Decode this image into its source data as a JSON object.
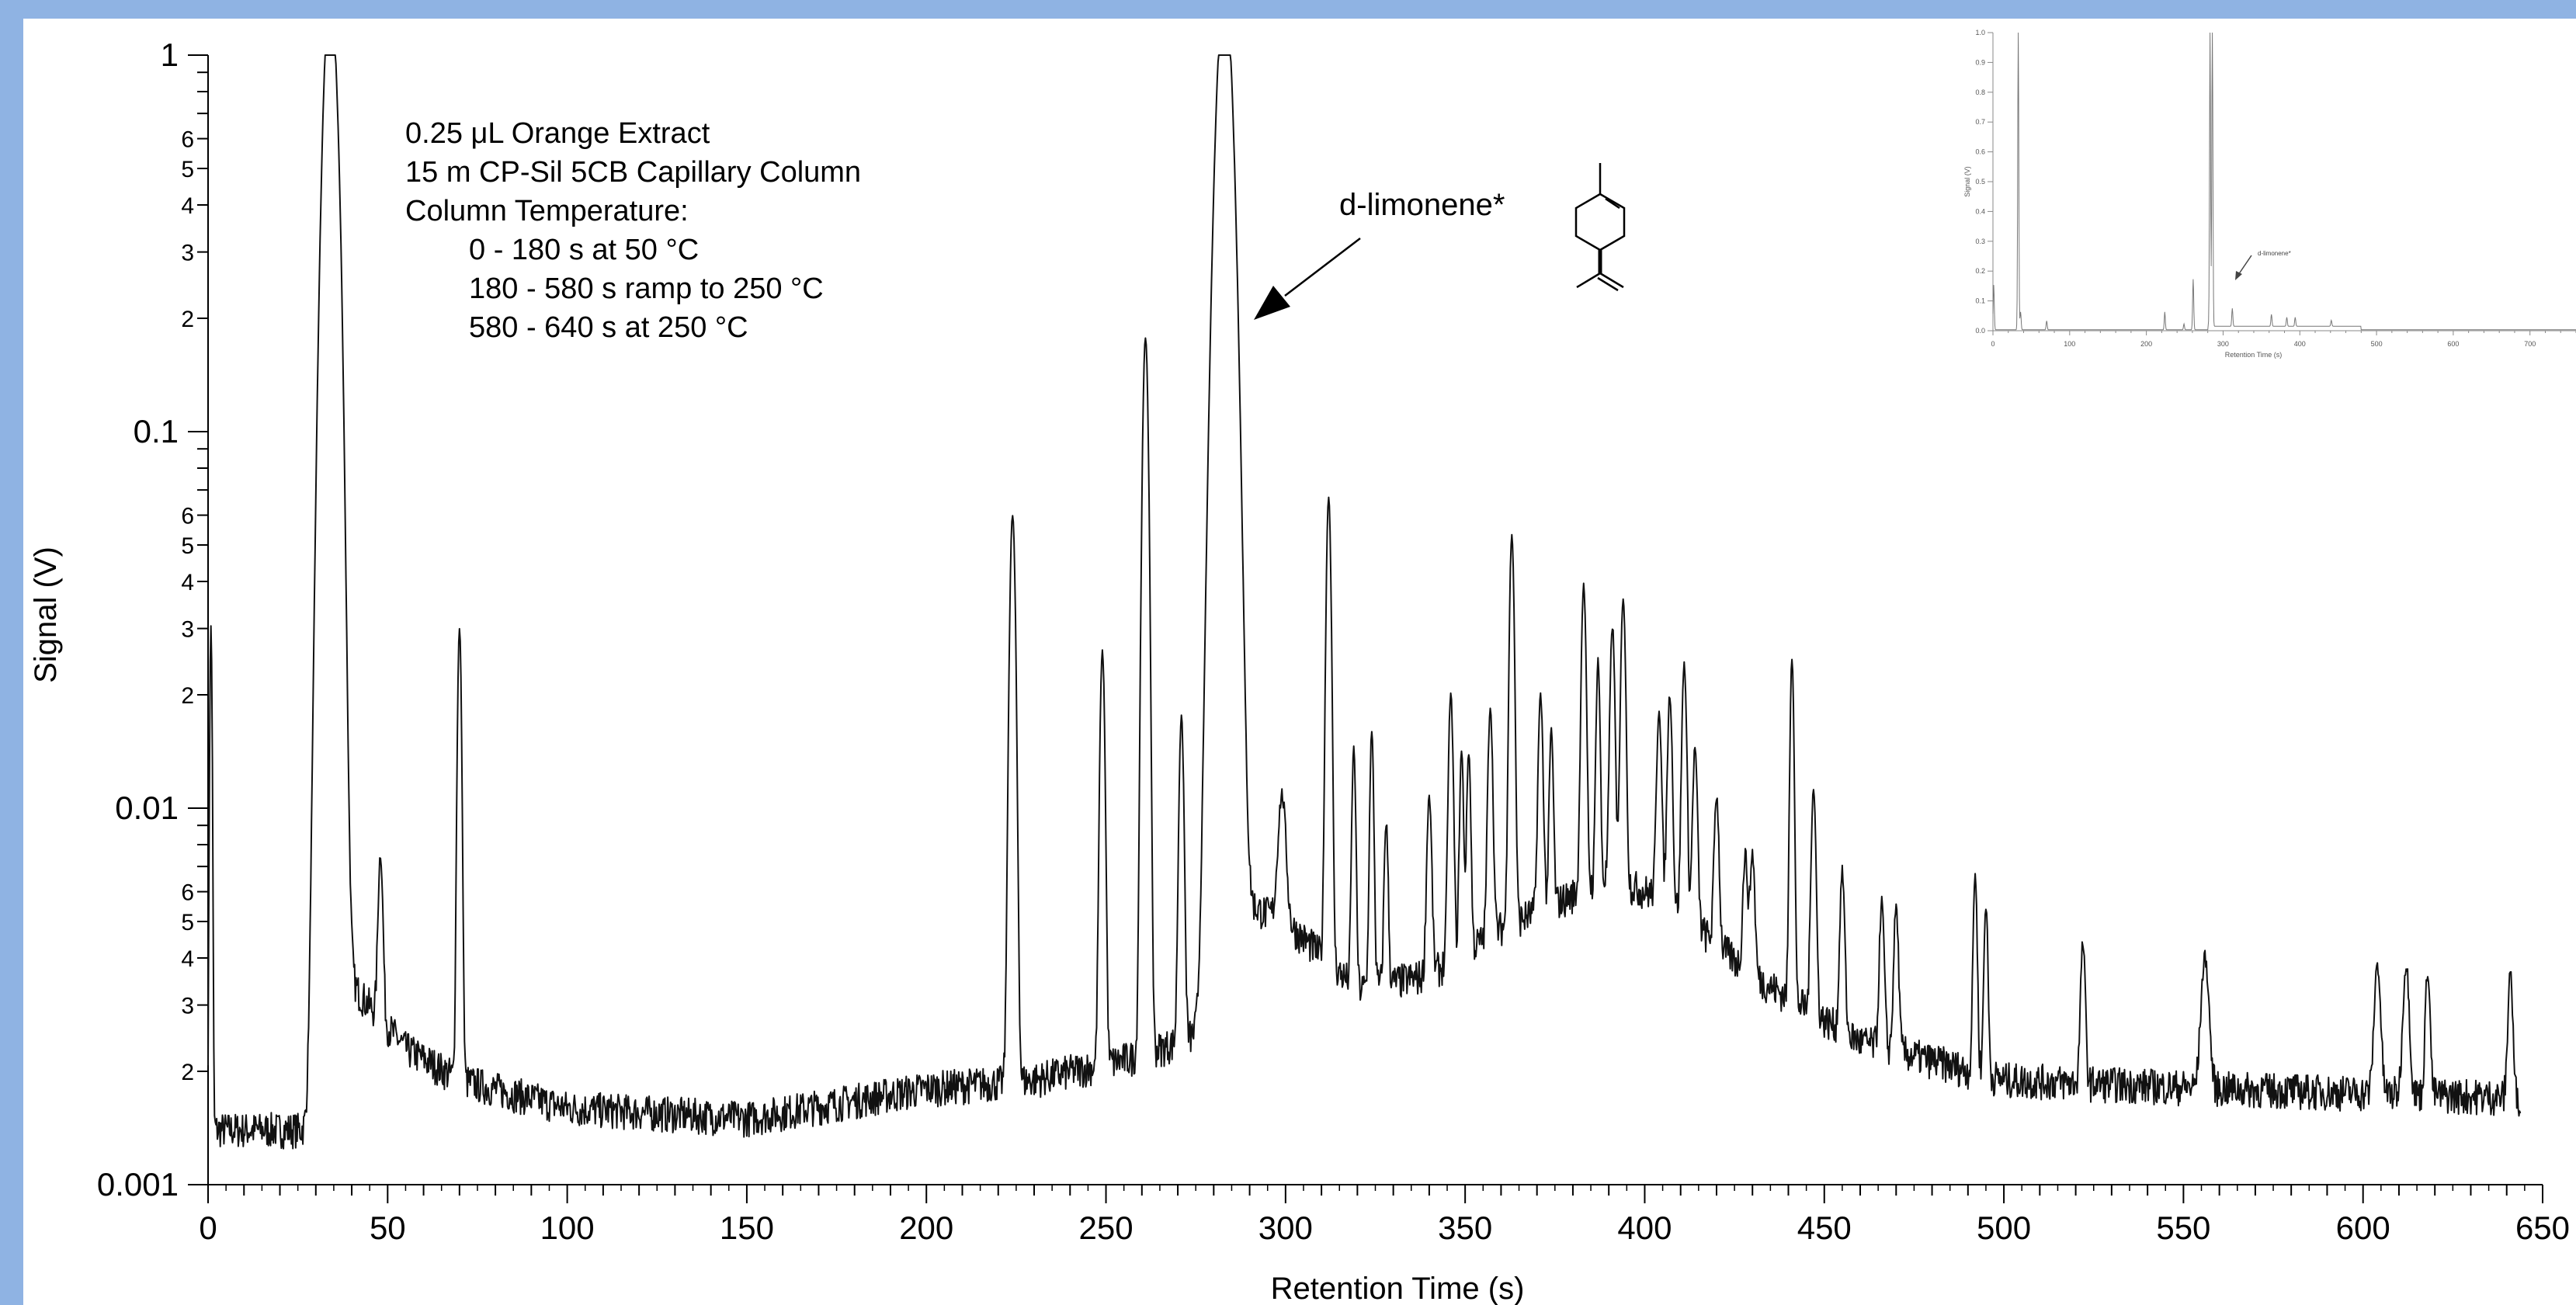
{
  "colors": {
    "border": "#8fb3e3",
    "background": "#ffffff",
    "trace": "#111111",
    "inset_trace": "#777777"
  },
  "chart_data": [
    {
      "type": "line",
      "xlabel": "Retention Time (s)",
      "ylabel": "Signal (V)",
      "xlim": [
        0,
        650
      ],
      "ylim": [
        0.001,
        1
      ],
      "y_scale": "log",
      "x_ticks": [
        0,
        50,
        100,
        150,
        200,
        250,
        300,
        350,
        400,
        450,
        500,
        550,
        600,
        650
      ],
      "y_major_ticks": [
        {
          "value": 0.001,
          "label": "0.001"
        },
        {
          "value": 0.01,
          "label": "0.01"
        },
        {
          "value": 0.1,
          "label": "0.1"
        },
        {
          "value": 1,
          "label": "1"
        }
      ],
      "y_minor_labels": [
        "2",
        "3",
        "4",
        "5",
        "6"
      ],
      "grid": false,
      "annotations": {
        "sample": [
          "0.25 μL Orange Extract",
          "15 m CP-Sil 5CB Capillary Column",
          "Column Temperature:"
        ],
        "program": [
          "0 - 180 s at 50 °C",
          "180 - 580 s ramp to 250 °C",
          "580 - 640 s at 250 °C"
        ],
        "peak_label": "d-limonene*",
        "peak_label_x": 287
      },
      "baseline": [
        [
          0,
          0.0014
        ],
        [
          30,
          0.0014
        ],
        [
          40,
          0.0034
        ],
        [
          55,
          0.0023
        ],
        [
          70,
          0.0019
        ],
        [
          100,
          0.0016
        ],
        [
          150,
          0.0015
        ],
        [
          200,
          0.0018
        ],
        [
          230,
          0.0019
        ],
        [
          260,
          0.0022
        ],
        [
          280,
          0.0026
        ],
        [
          290,
          0.0055
        ],
        [
          300,
          0.005
        ],
        [
          320,
          0.0033
        ],
        [
          340,
          0.0036
        ],
        [
          360,
          0.0048
        ],
        [
          390,
          0.0065
        ],
        [
          405,
          0.0058
        ],
        [
          430,
          0.0036
        ],
        [
          460,
          0.0024
        ],
        [
          500,
          0.0019
        ],
        [
          560,
          0.0018
        ],
        [
          650,
          0.0017
        ]
      ],
      "peaks": [
        {
          "x": 0.8,
          "h": 0.029,
          "w": 0.3
        },
        {
          "x": 34,
          "h": 1.5,
          "w": 1.6
        },
        {
          "x": 36.5,
          "h": 0.065,
          "w": 0.8
        },
        {
          "x": 48,
          "h": 0.0048,
          "w": 0.6
        },
        {
          "x": 70,
          "h": 0.028,
          "w": 0.5
        },
        {
          "x": 224,
          "h": 0.058,
          "w": 0.7
        },
        {
          "x": 249,
          "h": 0.024,
          "w": 0.6
        },
        {
          "x": 261,
          "h": 0.175,
          "w": 0.7
        },
        {
          "x": 271,
          "h": 0.015,
          "w": 0.6
        },
        {
          "x": 283,
          "h": 1.5,
          "w": 1.9
        },
        {
          "x": 299,
          "h": 0.0058,
          "w": 1.0
        },
        {
          "x": 312,
          "h": 0.063,
          "w": 0.6
        },
        {
          "x": 319,
          "h": 0.011,
          "w": 0.5
        },
        {
          "x": 324,
          "h": 0.0125,
          "w": 0.5
        },
        {
          "x": 328,
          "h": 0.0058,
          "w": 0.5
        },
        {
          "x": 340,
          "h": 0.0072,
          "w": 0.6
        },
        {
          "x": 346,
          "h": 0.016,
          "w": 0.6
        },
        {
          "x": 349,
          "h": 0.01,
          "w": 0.5
        },
        {
          "x": 351,
          "h": 0.01,
          "w": 0.5
        },
        {
          "x": 357,
          "h": 0.014,
          "w": 0.6
        },
        {
          "x": 363,
          "h": 0.048,
          "w": 0.6
        },
        {
          "x": 371,
          "h": 0.0145,
          "w": 0.6
        },
        {
          "x": 374,
          "h": 0.0105,
          "w": 0.5
        },
        {
          "x": 383,
          "h": 0.033,
          "w": 0.6
        },
        {
          "x": 387,
          "h": 0.0185,
          "w": 0.5
        },
        {
          "x": 391,
          "h": 0.024,
          "w": 0.6
        },
        {
          "x": 394,
          "h": 0.03,
          "w": 0.6
        },
        {
          "x": 404,
          "h": 0.0125,
          "w": 0.6
        },
        {
          "x": 407,
          "h": 0.0145,
          "w": 0.6
        },
        {
          "x": 411,
          "h": 0.019,
          "w": 0.6
        },
        {
          "x": 414,
          "h": 0.0095,
          "w": 0.6
        },
        {
          "x": 420,
          "h": 0.0065,
          "w": 0.6
        },
        {
          "x": 428,
          "h": 0.0038,
          "w": 0.6
        },
        {
          "x": 430,
          "h": 0.004,
          "w": 0.6
        },
        {
          "x": 441,
          "h": 0.022,
          "w": 0.5
        },
        {
          "x": 447,
          "h": 0.0085,
          "w": 0.6
        },
        {
          "x": 455,
          "h": 0.0042,
          "w": 0.6
        },
        {
          "x": 466,
          "h": 0.0033,
          "w": 0.6
        },
        {
          "x": 470,
          "h": 0.0032,
          "w": 0.6
        },
        {
          "x": 492,
          "h": 0.0047,
          "w": 0.5
        },
        {
          "x": 495,
          "h": 0.0036,
          "w": 0.5
        },
        {
          "x": 522,
          "h": 0.0025,
          "w": 0.6
        },
        {
          "x": 556,
          "h": 0.0022,
          "w": 1.0
        },
        {
          "x": 604,
          "h": 0.0021,
          "w": 0.8
        },
        {
          "x": 612,
          "h": 0.0021,
          "w": 0.8
        },
        {
          "x": 618,
          "h": 0.002,
          "w": 0.6
        },
        {
          "x": 641,
          "h": 0.002,
          "w": 0.6
        }
      ]
    },
    {
      "type": "line",
      "xlabel": "Retention Time (s)",
      "ylabel": "Signal (V)",
      "xlim": [
        0,
        760
      ],
      "ylim": [
        0,
        1.0
      ],
      "y_scale": "linear",
      "x_ticks": [
        0,
        100,
        200,
        300,
        400,
        500,
        600,
        700
      ],
      "y_ticks": [
        "0.0",
        "0.1",
        "0.2",
        "0.3",
        "0.4",
        "0.5",
        "0.6",
        "0.7",
        "0.8",
        "0.9",
        "1.0"
      ],
      "grid": false,
      "peak_label": "d-limonene*",
      "peaks": [
        [
          1,
          0.15
        ],
        [
          33,
          1.0
        ],
        [
          36,
          0.06
        ],
        [
          70,
          0.03
        ],
        [
          224,
          0.06
        ],
        [
          249,
          0.02
        ],
        [
          261,
          0.17
        ],
        [
          283,
          1.0
        ],
        [
          286,
          1.0
        ],
        [
          312,
          0.06
        ],
        [
          363,
          0.04
        ],
        [
          383,
          0.03
        ],
        [
          394,
          0.03
        ],
        [
          441,
          0.02
        ]
      ]
    }
  ]
}
